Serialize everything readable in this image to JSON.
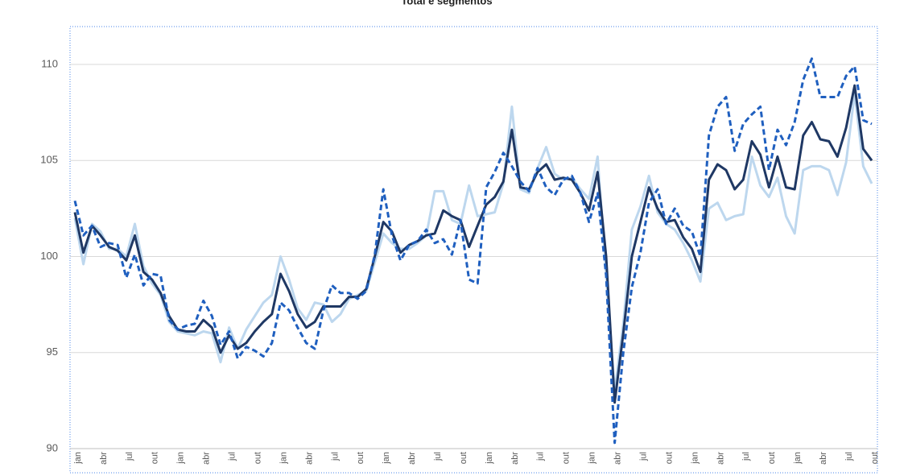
{
  "chart_data": {
    "type": "line",
    "title": "Total e segmentos",
    "categories": [
      "jan",
      null,
      null,
      "abr",
      null,
      null,
      "jul",
      null,
      null,
      "out",
      null,
      null,
      "jan",
      null,
      null,
      "abr",
      null,
      null,
      "jul",
      null,
      null,
      "out",
      null,
      null,
      "jan",
      null,
      null,
      "abr",
      null,
      null,
      "jul",
      null,
      null,
      "out",
      null,
      null,
      "jan",
      null,
      null,
      "abr",
      null,
      null,
      "jul",
      null,
      null,
      "out",
      null,
      null,
      "jan",
      null,
      null,
      "abr",
      null,
      null,
      "jul",
      null,
      null,
      "out",
      null,
      null,
      "jan",
      null,
      null,
      "abr",
      null,
      null,
      "jul",
      null,
      null,
      "out",
      null,
      null,
      "jan",
      null,
      null,
      "abr",
      null,
      null,
      "jul",
      null,
      null,
      "out",
      null,
      null,
      "jan",
      null,
      null,
      "abr",
      null,
      null,
      "jul",
      null,
      null,
      "out"
    ],
    "series": [
      {
        "color": "#bdd7ee",
        "style": "solid",
        "values": [
          102.0,
          99.6,
          101.7,
          101.3,
          100.4,
          100.4,
          100.0,
          101.7,
          99.5,
          98.6,
          98.0,
          96.6,
          96.1,
          96.0,
          95.9,
          96.1,
          96.0,
          94.5,
          96.3,
          95.2,
          96.2,
          96.9,
          97.6,
          98.0,
          100.0,
          98.8,
          97.3,
          96.7,
          97.6,
          97.5,
          96.6,
          97.0,
          97.8,
          98.0,
          98.2,
          99.7,
          101.2,
          100.7,
          100.4,
          100.4,
          100.7,
          101.1,
          103.4,
          103.4,
          101.9,
          101.7,
          103.7,
          102.1,
          102.2,
          102.3,
          103.8,
          107.8,
          103.5,
          103.3,
          104.6,
          105.7,
          104.3,
          104.0,
          104.1,
          103.5,
          103.0,
          105.2,
          99.0,
          93.0,
          96.5,
          101.4,
          102.6,
          104.2,
          102.3,
          101.7,
          101.4,
          100.7,
          99.8,
          98.7,
          102.5,
          102.8,
          101.9,
          102.1,
          102.2,
          105.2,
          103.7,
          103.1,
          104.1,
          102.1,
          101.2,
          104.5,
          104.7,
          104.7,
          104.5,
          103.2,
          104.9,
          108.5,
          104.7,
          103.8
        ]
      },
      {
        "color": "#1f3864",
        "style": "solid",
        "values": [
          102.3,
          100.2,
          101.6,
          101.1,
          100.5,
          100.3,
          99.8,
          101.1,
          99.2,
          98.8,
          98.1,
          96.9,
          96.2,
          96.1,
          96.1,
          96.7,
          96.3,
          95.0,
          95.9,
          95.2,
          95.5,
          96.1,
          96.6,
          97.0,
          99.1,
          98.2,
          97.0,
          96.3,
          96.6,
          97.4,
          97.4,
          97.4,
          97.9,
          97.9,
          98.3,
          100.0,
          101.8,
          101.3,
          100.2,
          100.6,
          100.8,
          101.1,
          101.2,
          102.4,
          102.1,
          101.9,
          100.5,
          101.6,
          102.7,
          103.1,
          103.9,
          106.6,
          103.6,
          103.5,
          104.4,
          104.8,
          104.0,
          104.1,
          104.0,
          103.3,
          102.4,
          104.4,
          100.0,
          92.4,
          96.0,
          100.0,
          101.8,
          103.6,
          102.5,
          101.8,
          101.9,
          101.0,
          100.4,
          99.2,
          104.0,
          104.8,
          104.5,
          103.5,
          104.0,
          106.0,
          105.3,
          103.6,
          105.2,
          103.6,
          103.5,
          106.3,
          107.0,
          106.1,
          106.0,
          105.2,
          106.7,
          108.9,
          105.6,
          105.0
        ]
      },
      {
        "color": "#1f5fbf",
        "style": "dashed",
        "values": [
          102.9,
          101.1,
          101.6,
          100.5,
          100.7,
          100.6,
          98.9,
          100.1,
          98.5,
          99.1,
          99.0,
          96.7,
          96.2,
          96.4,
          96.5,
          97.7,
          96.9,
          95.4,
          96.1,
          94.7,
          95.3,
          95.1,
          94.8,
          95.5,
          97.6,
          97.2,
          96.3,
          95.5,
          95.2,
          97.2,
          98.5,
          98.1,
          98.1,
          97.8,
          98.2,
          100.1,
          103.5,
          101.1,
          99.8,
          100.6,
          100.8,
          101.4,
          100.7,
          100.9,
          100.1,
          101.9,
          98.8,
          98.6,
          103.6,
          104.4,
          105.4,
          104.7,
          103.9,
          103.4,
          104.6,
          103.6,
          103.2,
          104.0,
          104.2,
          103.3,
          101.8,
          103.3,
          99.0,
          90.3,
          95.0,
          98.4,
          100.2,
          102.8,
          103.5,
          101.7,
          102.5,
          101.6,
          101.3,
          100.0,
          106.3,
          107.8,
          108.3,
          105.5,
          106.9,
          107.4,
          107.8,
          104.5,
          106.6,
          105.8,
          107.0,
          109.2,
          110.3,
          108.3,
          108.3,
          108.3,
          109.4,
          109.9,
          107.1,
          106.9
        ]
      }
    ],
    "ylim": [
      90,
      112
    ],
    "yticks": [
      90,
      95,
      100,
      105,
      110
    ],
    "grid": true
  }
}
